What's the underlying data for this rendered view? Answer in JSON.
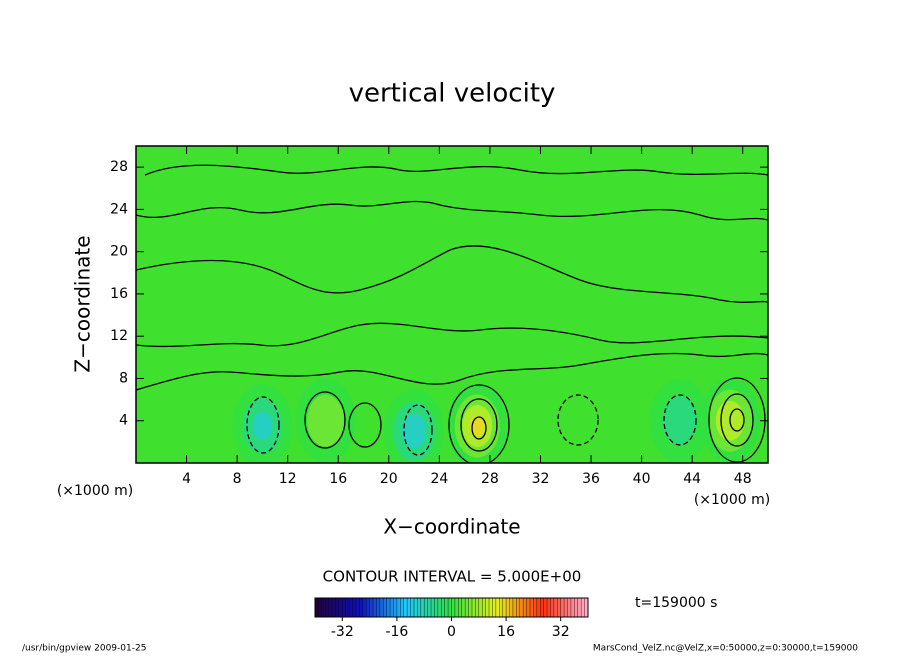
{
  "chart_data": {
    "type": "contour",
    "title": "vertical velocity",
    "x_label": "X−coordinate",
    "y_label": "Z−coordinate",
    "x_unit": "(×1000 m)",
    "y_unit": "(×1000 m)",
    "xlim": [
      0,
      50
    ],
    "xticks": [
      4,
      8,
      12,
      16,
      20,
      24,
      28,
      32,
      36,
      40,
      44,
      48
    ],
    "ylim": [
      0,
      30
    ],
    "yticks": [
      4,
      8,
      12,
      16,
      20,
      24,
      28
    ],
    "background_color": "#3fe12e",
    "extrema": [
      {
        "x": 10,
        "z": 3.5,
        "value": -10
      },
      {
        "x": 22,
        "z": 3,
        "value": -12
      },
      {
        "x": 27,
        "z": 3.5,
        "value": 15
      },
      {
        "x": 47,
        "z": 4,
        "value": 14
      },
      {
        "x": 15,
        "z": 4,
        "value": 8
      },
      {
        "x": 43,
        "z": 4,
        "value": -7
      }
    ],
    "contour_interval": "CONTOUR INTERVAL = 5.000E+00",
    "time_label": "t=159000 s",
    "colorbar": {
      "clim": [
        -40,
        40
      ],
      "ticks": [
        -32,
        -16,
        0,
        16,
        32
      ],
      "colors": [
        "#20003a",
        "#1010c0",
        "#20c8ff",
        "#30e040",
        "#e8f020",
        "#ff3010",
        "#ffb0d0"
      ]
    },
    "footer_left": "/usr/bin/gpview   2009-01-25",
    "footer_right": "MarsCond_VelZ.nc@VelZ,x=0:50000,z=0:30000,t=159000"
  }
}
